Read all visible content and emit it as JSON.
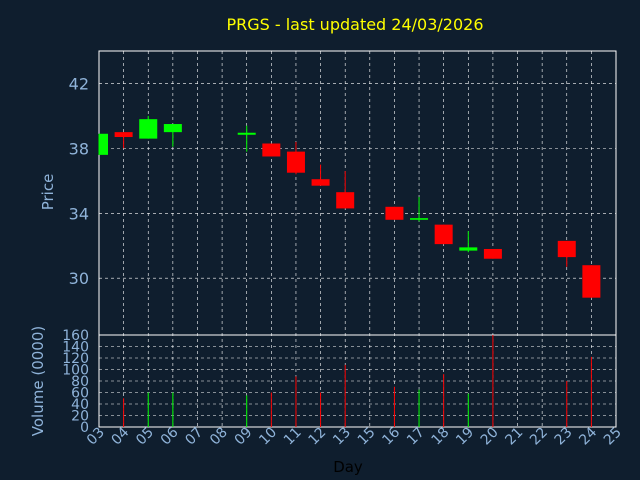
{
  "chart_data": {
    "type": "candlestick",
    "title": "PRGS - last updated 24/03/2026",
    "xlabel": "Day",
    "ylabel": "Price",
    "volume_label": "Volume (0000)",
    "price_ylim": [
      26.5,
      44
    ],
    "price_ticks": [
      30,
      34,
      38,
      42
    ],
    "volume_ylim": [
      0,
      160
    ],
    "volume_ticks": [
      0,
      20,
      40,
      60,
      80,
      100,
      120,
      140,
      160
    ],
    "grid": true,
    "days": [
      "03",
      "04",
      "05",
      "06",
      "07",
      "08",
      "09",
      "10",
      "11",
      "12",
      "13",
      "15",
      "16",
      "17",
      "18",
      "19",
      "20",
      "21",
      "22",
      "23",
      "24",
      "25"
    ],
    "candles": [
      {
        "day": "03",
        "open": 37.6,
        "close": 38.9,
        "high": 38.9,
        "low": 37.6,
        "volume": 0
      },
      {
        "day": "04",
        "open": 39.0,
        "close": 38.7,
        "high": 39.0,
        "low": 38.0,
        "volume": 50
      },
      {
        "day": "05",
        "open": 38.6,
        "close": 39.8,
        "high": 40.0,
        "low": 38.6,
        "volume": 60
      },
      {
        "day": "06",
        "open": 39.0,
        "close": 39.5,
        "high": 39.5,
        "low": 38.1,
        "volume": 60
      },
      {
        "day": "09",
        "open": 38.9,
        "close": 38.9,
        "high": 39.4,
        "low": 37.8,
        "volume": 55
      },
      {
        "day": "10",
        "open": 38.3,
        "close": 37.5,
        "high": 38.3,
        "low": 37.5,
        "volume": 60
      },
      {
        "day": "11",
        "open": 37.8,
        "close": 36.5,
        "high": 38.4,
        "low": 36.4,
        "volume": 88
      },
      {
        "day": "12",
        "open": 36.1,
        "close": 35.7,
        "high": 37.0,
        "low": 35.7,
        "volume": 60
      },
      {
        "day": "13",
        "open": 35.3,
        "close": 34.3,
        "high": 36.6,
        "low": 34.3,
        "volume": 108
      },
      {
        "day": "16",
        "open": 34.4,
        "close": 33.6,
        "high": 34.4,
        "low": 33.6,
        "volume": 70
      },
      {
        "day": "17",
        "open": 33.6,
        "close": 33.7,
        "high": 35.0,
        "low": 33.5,
        "volume": 65
      },
      {
        "day": "18",
        "open": 33.3,
        "close": 32.1,
        "high": 33.3,
        "low": 32.1,
        "volume": 92
      },
      {
        "day": "19",
        "open": 31.7,
        "close": 31.9,
        "high": 32.9,
        "low": 31.6,
        "volume": 58
      },
      {
        "day": "20",
        "open": 31.8,
        "close": 31.2,
        "high": 31.8,
        "low": 31.2,
        "volume": 160
      },
      {
        "day": "23",
        "open": 32.3,
        "close": 31.3,
        "high": 32.3,
        "low": 30.7,
        "volume": 80
      },
      {
        "day": "24",
        "open": 30.8,
        "close": 28.8,
        "high": 30.8,
        "low": 28.8,
        "volume": 122
      }
    ],
    "colors": {
      "up": "#00ff00",
      "down": "#ff0000",
      "background": "#0f1e2e",
      "grid": "#ffffff",
      "title": "#ffff00",
      "axis_text": "#8fb3d9"
    }
  }
}
